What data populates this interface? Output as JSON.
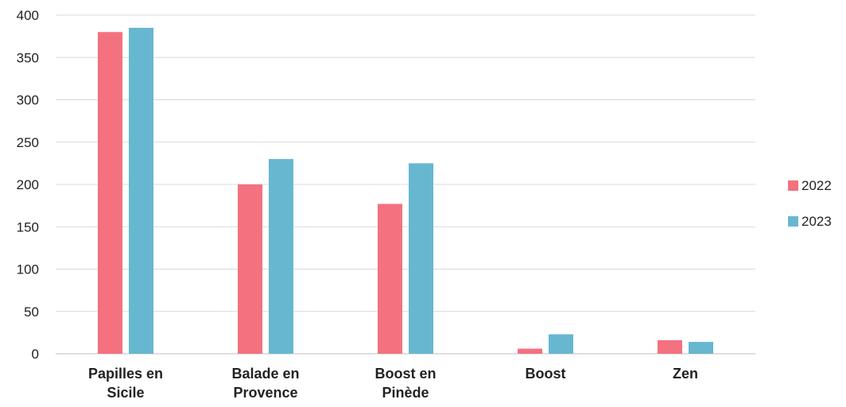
{
  "chart_data": {
    "type": "bar",
    "categories": [
      [
        "Papilles en",
        "Sicile"
      ],
      [
        "Balade en",
        "Provence"
      ],
      [
        "Boost en",
        "Pinède"
      ],
      [
        "Boost"
      ],
      [
        "Zen"
      ]
    ],
    "series": [
      {
        "name": "2022",
        "color": "#f4717f",
        "values": [
          380,
          200,
          177,
          6,
          16
        ]
      },
      {
        "name": "2023",
        "color": "#67b7d1",
        "values": [
          385,
          230,
          225,
          23,
          14
        ]
      }
    ],
    "title": "",
    "xlabel": "",
    "ylabel": "",
    "ylim": [
      0,
      400
    ],
    "yticks": [
      0,
      50,
      100,
      150,
      200,
      250,
      300,
      350,
      400
    ],
    "grid": true,
    "legend_position": "right"
  }
}
